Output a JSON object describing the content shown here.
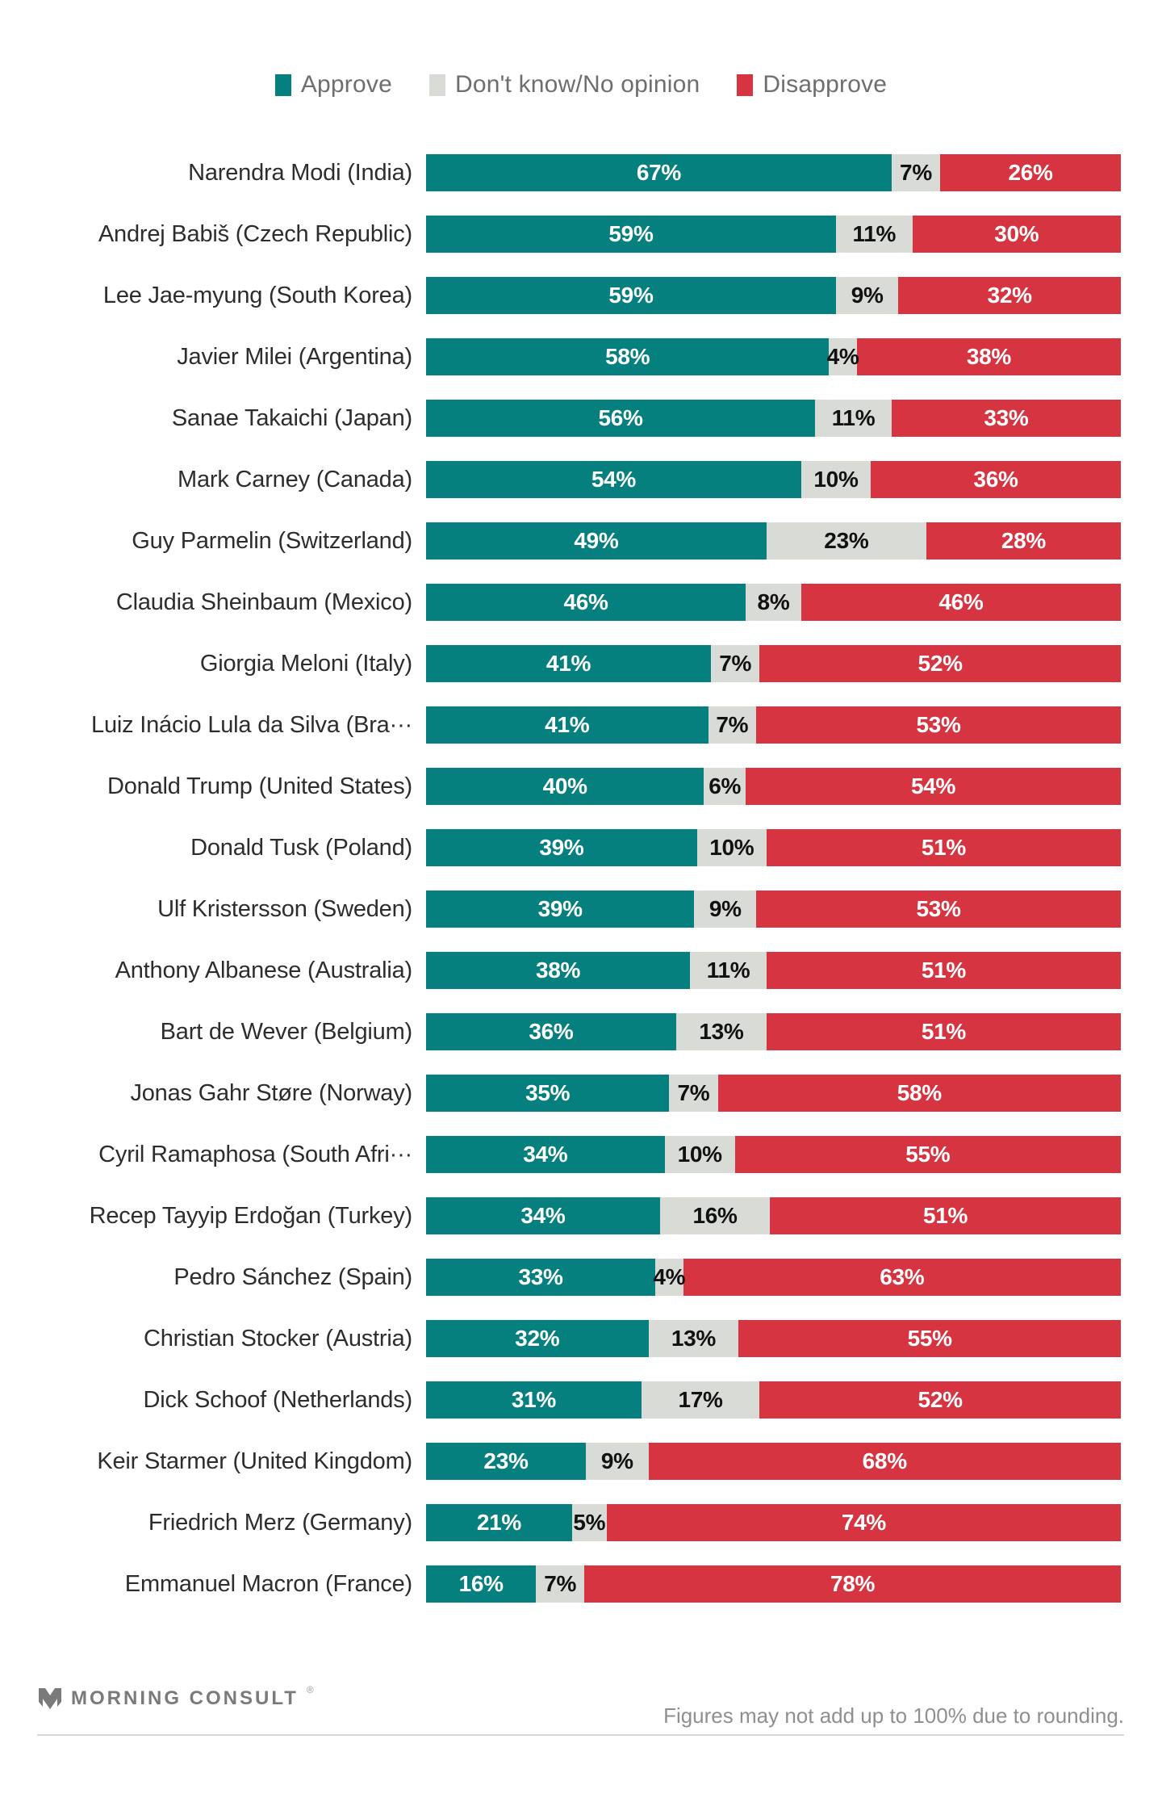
{
  "colors": {
    "approve": "#06807e",
    "dont_know": "#d8dbd6",
    "disapprove": "#d63440",
    "label_on_dark": "#ffffff",
    "label_on_light": "#111111"
  },
  "legend": {
    "items": [
      {
        "label": "Approve",
        "color": "#06807e"
      },
      {
        "label": "Don't know/No opinion",
        "color": "#d8dbd6"
      },
      {
        "label": "Disapprove",
        "color": "#d63440"
      }
    ]
  },
  "chart_data": {
    "type": "bar",
    "orientation": "horizontal",
    "stacked": true,
    "unit": "%",
    "legend_position": "top",
    "grid": false,
    "categories": [
      "Narendra Modi (India)",
      "Andrej Babiš (Czech Republic)",
      "Lee Jae-myung (South Korea)",
      "Javier Milei (Argentina)",
      "Sanae Takaichi (Japan)",
      "Mark Carney (Canada)",
      "Guy Parmelin (Switzerland)",
      "Claudia Sheinbaum (Mexico)",
      "Giorgia Meloni (Italy)",
      "Luiz Inácio Lula da Silva (Bra···",
      "Donald Trump (United States)",
      "Donald Tusk (Poland)",
      "Ulf Kristersson (Sweden)",
      "Anthony Albanese (Australia)",
      "Bart de Wever (Belgium)",
      "Jonas Gahr Støre (Norway)",
      "Cyril Ramaphosa (South Afri···",
      "Recep Tayyip Erdoğan (Turkey)",
      "Pedro Sánchez (Spain)",
      "Christian Stocker (Austria)",
      "Dick Schoof (Netherlands)",
      "Keir Starmer (United Kingdom)",
      "Friedrich Merz (Germany)",
      "Emmanuel Macron (France)"
    ],
    "series": [
      {
        "name": "Approve",
        "values": [
          67,
          59,
          59,
          58,
          56,
          54,
          49,
          46,
          41,
          41,
          40,
          39,
          39,
          38,
          36,
          35,
          34,
          34,
          33,
          32,
          31,
          23,
          21,
          16
        ]
      },
      {
        "name": "Don't know/No opinion",
        "values": [
          7,
          11,
          9,
          4,
          11,
          10,
          23,
          8,
          7,
          7,
          6,
          10,
          9,
          11,
          13,
          7,
          10,
          16,
          4,
          13,
          17,
          9,
          5,
          7
        ]
      },
      {
        "name": "Disapprove",
        "values": [
          26,
          30,
          32,
          38,
          33,
          36,
          28,
          46,
          52,
          53,
          54,
          51,
          53,
          51,
          51,
          58,
          55,
          51,
          63,
          55,
          52,
          68,
          74,
          78
        ]
      }
    ],
    "value_suffix": "%",
    "note": "Figures may not add up to 100% due to rounding."
  },
  "footer": {
    "brand": "MORNING CONSULT",
    "trademark": "®",
    "note": "Figures may not add up to 100% due to rounding."
  }
}
